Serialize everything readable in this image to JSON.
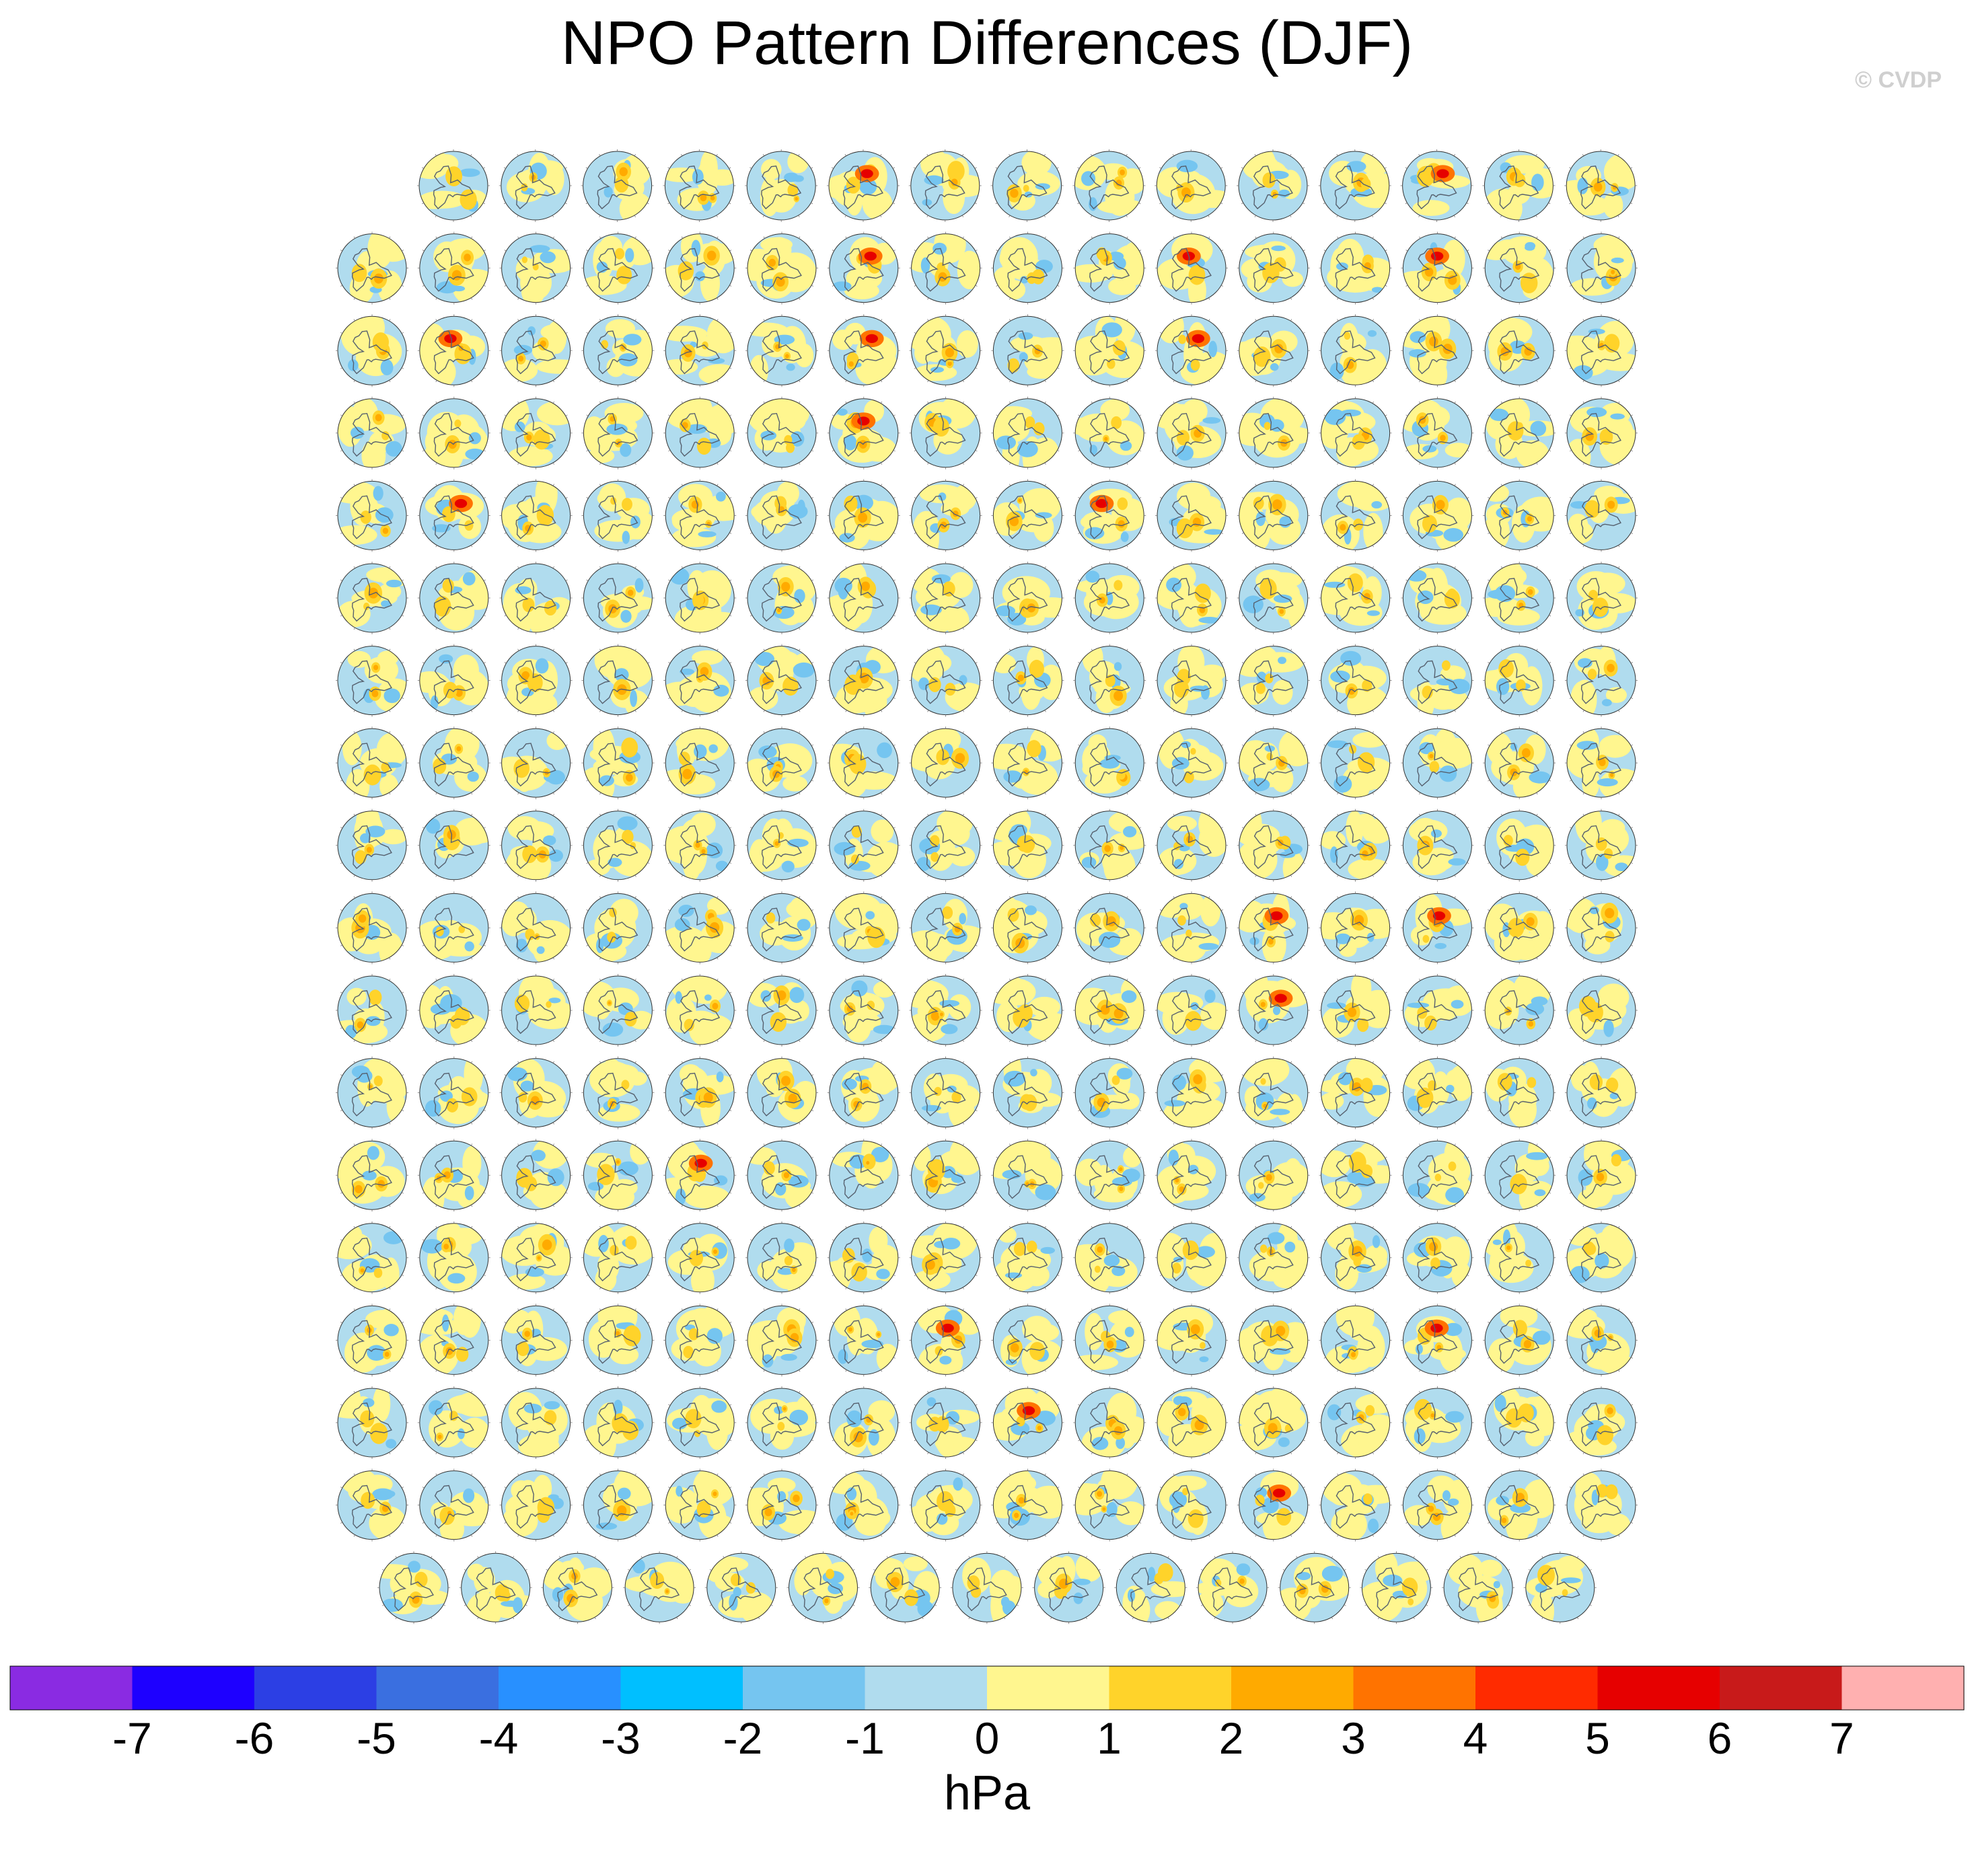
{
  "title": "NPO Pattern Differences (DJF)",
  "copyright": "© CVDP",
  "colors": {
    "land_contour": "#56606e",
    "panel_edge": "#333333"
  },
  "chart_data": {
    "type": "heatmap",
    "description_kind": "small-multiples polar stereographic maps",
    "panel_rows": [
      15,
      16,
      16,
      16,
      16,
      16,
      16,
      16,
      16,
      16,
      16,
      16,
      16,
      16,
      16,
      16,
      16,
      15
    ],
    "colorbar": {
      "label": "hPa",
      "tick_labels": [
        "-7",
        "-6",
        "-5",
        "-4",
        "-3",
        "-2",
        "-1",
        "0",
        "1",
        "2",
        "3",
        "4",
        "5",
        "6",
        "7"
      ],
      "boundaries": [
        -7,
        -6,
        -5,
        -4,
        -3,
        -2,
        -1,
        0,
        1,
        2,
        3,
        4,
        5,
        6,
        7
      ],
      "colors": [
        "#8a2be2",
        "#1e00ff",
        "#2c3fe4",
        "#3a6fe0",
        "#2890ff",
        "#00bfff",
        "#75c5f0",
        "#b0dcee",
        "#fff68f",
        "#ffd32a",
        "#ffaa00",
        "#ff7300",
        "#ff2b00",
        "#e60000",
        "#c81a1a",
        "#ffb0b0"
      ]
    }
  }
}
